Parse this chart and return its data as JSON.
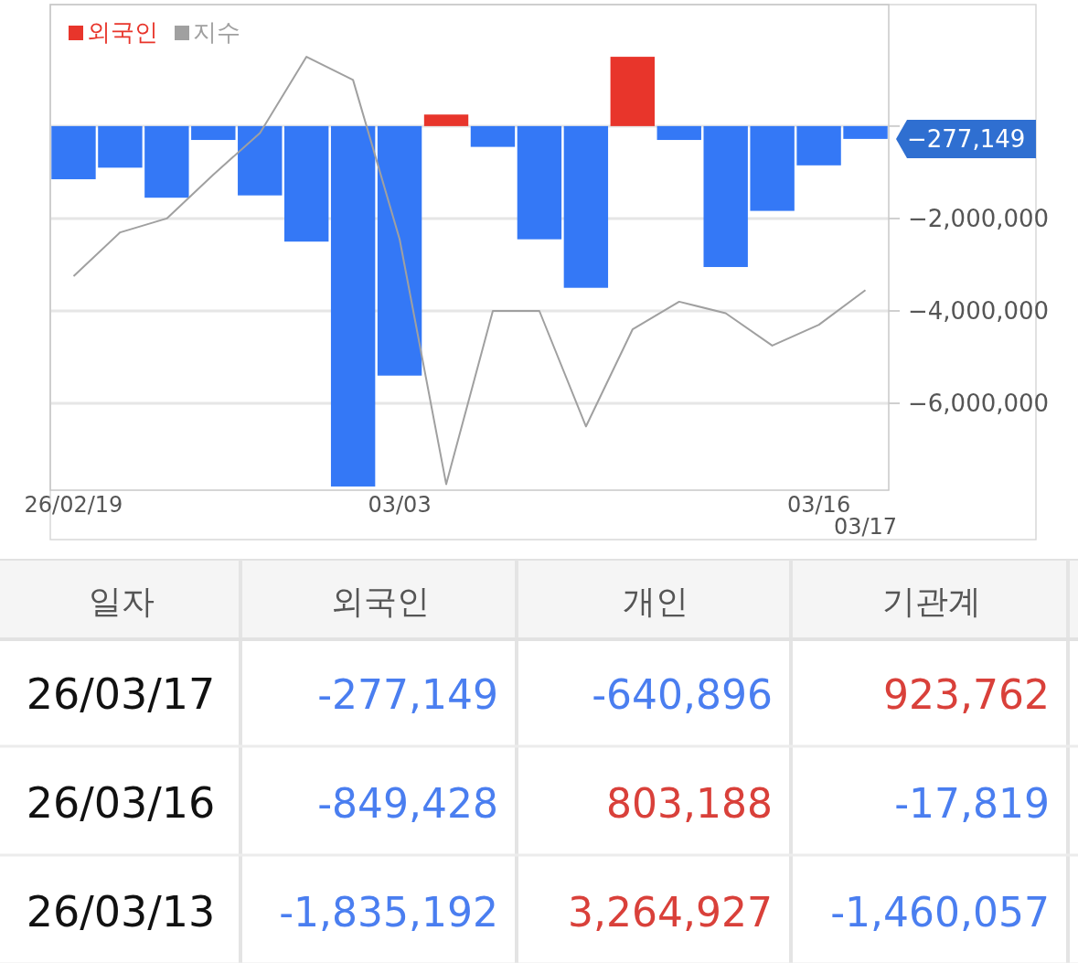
{
  "chart_data": [
    {
      "type": "bar",
      "categories": [
        "26/02/19",
        null,
        null,
        null,
        null,
        null,
        null,
        "03/03",
        null,
        null,
        null,
        null,
        null,
        null,
        null,
        null,
        "03/16",
        "03/17"
      ],
      "series": [
        {
          "name": "외국인",
          "type": "bar",
          "color": "#e8352b",
          "values": [
            -1150000,
            -900000,
            -1550000,
            -300000,
            -1500000,
            -2500000,
            -7800000,
            -5400000,
            250000,
            -450000,
            -2450000,
            -3500000,
            1500000,
            -300000,
            -3050000,
            -1835192,
            -849428,
            -277149
          ],
          "colors": [
            "#3478f6",
            "#3478f6",
            "#3478f6",
            "#3478f6",
            "#3478f6",
            "#3478f6",
            "#3478f6",
            "#3478f6",
            "#e8352b",
            "#3478f6",
            "#3478f6",
            "#3478f6",
            "#e8352b",
            "#3478f6",
            "#3478f6",
            "#3478f6",
            "#3478f6",
            "#3478f6"
          ]
        },
        {
          "name": "지수",
          "type": "line",
          "color": "#a0a0a0",
          "values": [
            -3250000,
            -2300000,
            -2000000,
            -1050000,
            -150000,
            1500000,
            1000000,
            -2450000,
            -7750000,
            -4000000,
            -4000000,
            -6500000,
            -4400000,
            -3800000,
            -4050000,
            -4750000,
            -4300000,
            -3550000
          ]
        }
      ],
      "ylim": [
        -7880000,
        2630000
      ],
      "yticks": [
        {
          "value": 0,
          "label": null
        },
        {
          "value": -2000000,
          "label": "−2,000,000"
        },
        {
          "value": -4000000,
          "label": "−4,000,000"
        },
        {
          "value": -6000000,
          "label": "−6,000,000"
        }
      ],
      "grid": "y",
      "legend": "top left",
      "annotations": [
        "−277,149"
      ]
    },
    {
      "type": "heatmap",
      "ylabel": "일자",
      "categories": [
        "외국인",
        "개인",
        "기관계"
      ],
      "y_categories": [
        "26/03/17",
        "26/03/16",
        "26/03/13"
      ],
      "cells": [
        [
          -277149,
          -640896,
          923762
        ],
        [
          -849428,
          803188,
          -17819
        ],
        [
          -1835192,
          3264927,
          -1460057
        ]
      ],
      "cell_labels": [
        [
          "-277,149",
          "-640,896",
          "923,762"
        ],
        [
          "-849,428",
          "803,188",
          "-17,819"
        ],
        [
          "-1,835,192",
          "3,264,927",
          "-1,460,057"
        ]
      ]
    }
  ]
}
